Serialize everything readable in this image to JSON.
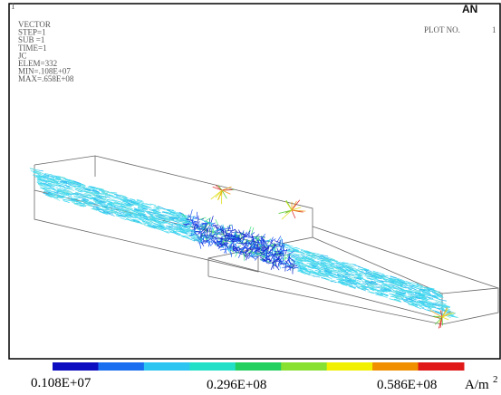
{
  "window_number": "1",
  "info": [
    "VECTOR",
    "STEP=1",
    "SUB =1",
    "TIME=1",
    "JC",
    "ELEM=332",
    "MIN=.108E+07",
    "MAX=.658E+08"
  ],
  "logo": "AN",
  "plot_label": "PLOT NO.",
  "plot_number": "1",
  "legend": {
    "labels": [
      "0.108E+07",
      "0.296E+08",
      "0.586E+08"
    ],
    "unit": "A/m",
    "unit_exponent": "2",
    "colors": [
      "#0c0cc0",
      "#1a6ef0",
      "#2cc4f0",
      "#22e0c8",
      "#22d060",
      "#88e030",
      "#f0f000",
      "#f09000",
      "#e01818"
    ]
  }
}
